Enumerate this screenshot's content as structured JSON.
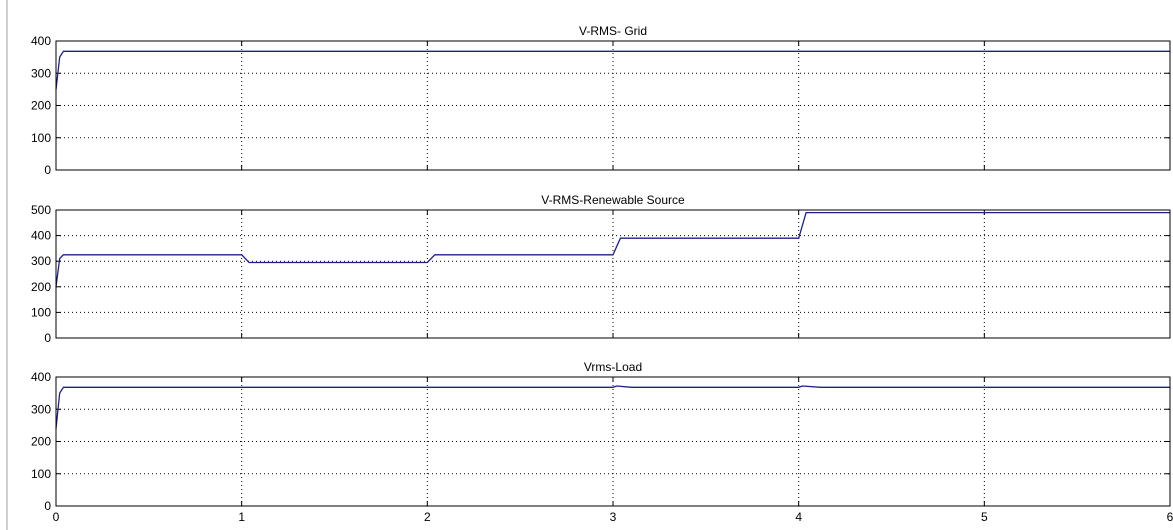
{
  "colors": {
    "line": "#1f1f8c",
    "axis": "#000000",
    "grid": "#000000",
    "background": "#ffffff"
  },
  "chart_data": [
    {
      "type": "line",
      "title": "V-RMS- Grid",
      "xlabel": "",
      "ylabel": "",
      "xlim": [
        0,
        6
      ],
      "ylim": [
        0,
        400
      ],
      "xticks": [
        0,
        1,
        2,
        3,
        4,
        5,
        6
      ],
      "yticks": [
        0,
        100,
        200,
        300,
        400
      ],
      "ytick_labels": [
        "0",
        "100",
        "200",
        "300",
        "400"
      ],
      "grid": true,
      "series": [
        {
          "x": [
            0,
            0.02,
            0.04,
            1,
            2,
            3,
            4,
            5,
            6
          ],
          "y": [
            250,
            350,
            368,
            368,
            368,
            368,
            368,
            368,
            368
          ]
        }
      ]
    },
    {
      "type": "line",
      "title": "V-RMS-Renewable Source",
      "xlabel": "",
      "ylabel": "",
      "xlim": [
        0,
        6
      ],
      "ylim": [
        0,
        500
      ],
      "xticks": [
        0,
        1,
        2,
        3,
        4,
        5,
        6
      ],
      "yticks": [
        0,
        100,
        200,
        300,
        400,
        500
      ],
      "ytick_labels": [
        "0",
        "100",
        "200",
        "300",
        "400",
        "500"
      ],
      "grid": true,
      "series": [
        {
          "x": [
            0,
            0.02,
            0.04,
            1.0,
            1.04,
            2.0,
            2.04,
            3.0,
            3.04,
            4.0,
            4.04,
            6
          ],
          "y": [
            200,
            310,
            325,
            325,
            295,
            295,
            325,
            325,
            390,
            390,
            490,
            490
          ]
        }
      ]
    },
    {
      "type": "line",
      "title": "Vrms-Load",
      "xlabel": "",
      "ylabel": "",
      "xlim": [
        0,
        6
      ],
      "ylim": [
        0,
        400
      ],
      "xticks": [
        0,
        1,
        2,
        3,
        4,
        5,
        6
      ],
      "yticks": [
        0,
        100,
        200,
        300,
        400
      ],
      "ytick_labels": [
        "0",
        "100",
        "200",
        "300",
        "400"
      ],
      "xtick_labels": [
        "0",
        "1",
        "2",
        "3",
        "4",
        "5",
        "6"
      ],
      "grid": true,
      "series": [
        {
          "x": [
            0,
            0.02,
            0.04,
            3.0,
            3.02,
            3.1,
            4.0,
            4.02,
            4.12,
            6
          ],
          "y": [
            240,
            350,
            368,
            368,
            372,
            368,
            368,
            372,
            368,
            368
          ]
        }
      ]
    }
  ]
}
